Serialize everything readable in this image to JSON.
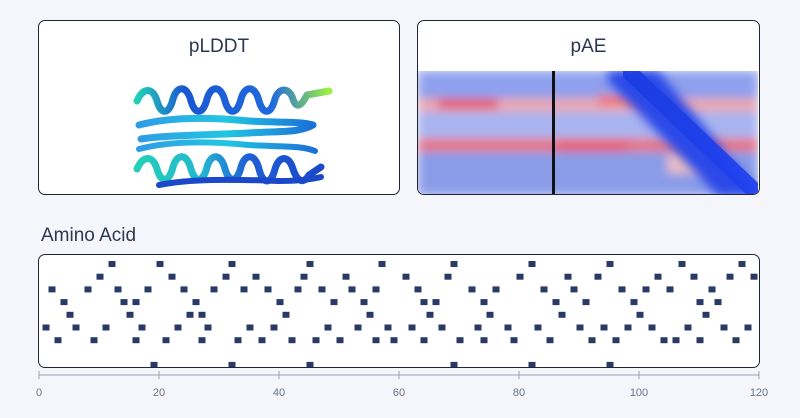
{
  "panels": {
    "plddt_title": "pLDDT",
    "pae_title": "pAE"
  },
  "section": {
    "title": "Amino Acid"
  },
  "colors": {
    "residue": "#2a3a66",
    "pae_low": "#1a3be0",
    "pae_high": "#e02020",
    "plddt_high": "#1a4fd0",
    "plddt_mid": "#20c8d8",
    "plddt_low": "#9ef040"
  },
  "chart_data": {
    "type": "scatter",
    "xlabel": "",
    "ylabel": "",
    "xlim": [
      0,
      120
    ],
    "x_ticks": [
      "0",
      "20",
      "40",
      "60",
      "80",
      "100",
      "120"
    ],
    "marker": "square",
    "points": [
      [
        12,
        1
      ],
      [
        20,
        1
      ],
      [
        32,
        1
      ],
      [
        45,
        1
      ],
      [
        57,
        1
      ],
      [
        69,
        1
      ],
      [
        82,
        1
      ],
      [
        95,
        1
      ],
      [
        107,
        1
      ],
      [
        117,
        1
      ],
      [
        10,
        2
      ],
      [
        22,
        2
      ],
      [
        31,
        2
      ],
      [
        36,
        2
      ],
      [
        44,
        2
      ],
      [
        51,
        2
      ],
      [
        61,
        2
      ],
      [
        68,
        2
      ],
      [
        80,
        2
      ],
      [
        88,
        2
      ],
      [
        93,
        2
      ],
      [
        103,
        2
      ],
      [
        109,
        2
      ],
      [
        115,
        2
      ],
      [
        119,
        2
      ],
      [
        2,
        3
      ],
      [
        8,
        3
      ],
      [
        13,
        3
      ],
      [
        18,
        3
      ],
      [
        24,
        3
      ],
      [
        29,
        3
      ],
      [
        34,
        3
      ],
      [
        38,
        3
      ],
      [
        43,
        3
      ],
      [
        47,
        3
      ],
      [
        52,
        3
      ],
      [
        56,
        3
      ],
      [
        63,
        3
      ],
      [
        72,
        3
      ],
      [
        76,
        3
      ],
      [
        84,
        3
      ],
      [
        89,
        3
      ],
      [
        97,
        3
      ],
      [
        101,
        3
      ],
      [
        105,
        3
      ],
      [
        112,
        3
      ],
      [
        4,
        4
      ],
      [
        14,
        4
      ],
      [
        16,
        4
      ],
      [
        26,
        4
      ],
      [
        40,
        4
      ],
      [
        49,
        4
      ],
      [
        54,
        4
      ],
      [
        64,
        4
      ],
      [
        66,
        4
      ],
      [
        74,
        4
      ],
      [
        86,
        4
      ],
      [
        91,
        4
      ],
      [
        99,
        4
      ],
      [
        110,
        4
      ],
      [
        113,
        4
      ],
      [
        5,
        5
      ],
      [
        15,
        5
      ],
      [
        25,
        5
      ],
      [
        27,
        5
      ],
      [
        41,
        5
      ],
      [
        55,
        5
      ],
      [
        65,
        5
      ],
      [
        75,
        5
      ],
      [
        87,
        5
      ],
      [
        100,
        5
      ],
      [
        111,
        5
      ],
      [
        1,
        6
      ],
      [
        6,
        6
      ],
      [
        11,
        6
      ],
      [
        17,
        6
      ],
      [
        23,
        6
      ],
      [
        28,
        6
      ],
      [
        35,
        6
      ],
      [
        39,
        6
      ],
      [
        48,
        6
      ],
      [
        53,
        6
      ],
      [
        58,
        6
      ],
      [
        62,
        6
      ],
      [
        67,
        6
      ],
      [
        73,
        6
      ],
      [
        78,
        6
      ],
      [
        83,
        6
      ],
      [
        90,
        6
      ],
      [
        94,
        6
      ],
      [
        98,
        6
      ],
      [
        102,
        6
      ],
      [
        108,
        6
      ],
      [
        114,
        6
      ],
      [
        118,
        6
      ],
      [
        3,
        7
      ],
      [
        9,
        7
      ],
      [
        16,
        7
      ],
      [
        21,
        7
      ],
      [
        27,
        7
      ],
      [
        33,
        7
      ],
      [
        37,
        7
      ],
      [
        42,
        7
      ],
      [
        46,
        7
      ],
      [
        50,
        7
      ],
      [
        56,
        7
      ],
      [
        59,
        7
      ],
      [
        64,
        7
      ],
      [
        70,
        7
      ],
      [
        74,
        7
      ],
      [
        79,
        7
      ],
      [
        85,
        7
      ],
      [
        92,
        7
      ],
      [
        96,
        7
      ],
      [
        104,
        7
      ],
      [
        106,
        7
      ],
      [
        110,
        7
      ],
      [
        116,
        7
      ],
      [
        19,
        8
      ],
      [
        32,
        8
      ],
      [
        45,
        8
      ],
      [
        69,
        8
      ],
      [
        82,
        8
      ],
      [
        95,
        8
      ]
    ]
  }
}
